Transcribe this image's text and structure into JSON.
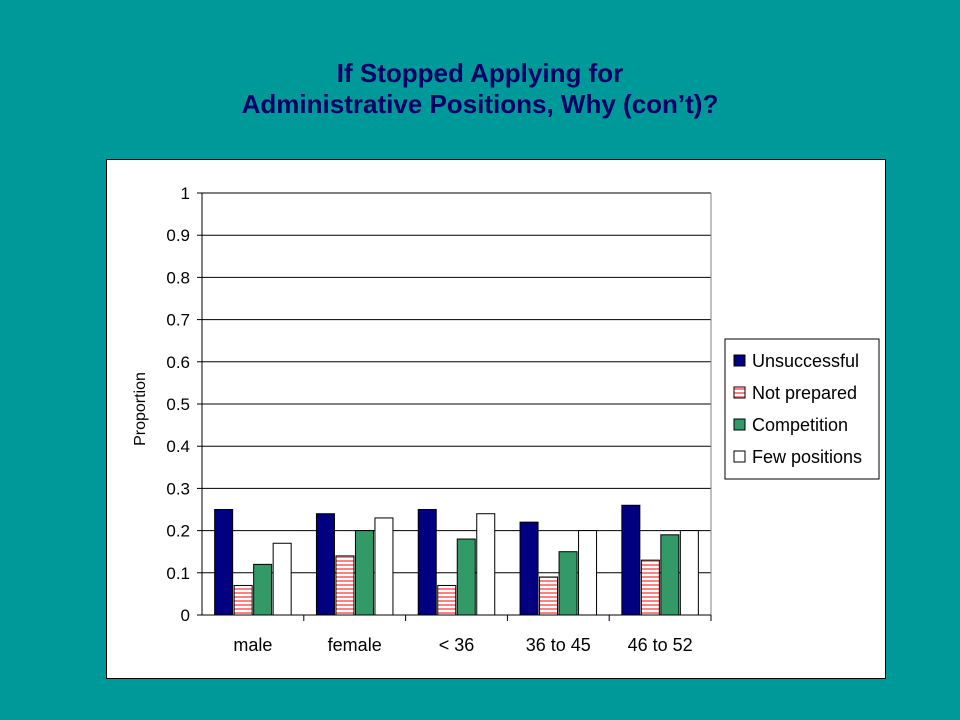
{
  "slide": {
    "title_line1": "If Stopped Applying for",
    "title_line2": "Administrative Positions, Why (con’t)?"
  },
  "chart_data": {
    "type": "bar",
    "categories": [
      "male",
      "female",
      "< 36",
      "36 to 45",
      "46 to 52"
    ],
    "series": [
      {
        "name": "Unsuccessful",
        "color": "#000080",
        "pattern": "solid",
        "values": [
          0.25,
          0.24,
          0.25,
          0.22,
          0.26
        ]
      },
      {
        "name": "Not prepared",
        "color": "#ff8080",
        "pattern": "horizontal-stripes",
        "values": [
          0.07,
          0.14,
          0.07,
          0.09,
          0.13
        ]
      },
      {
        "name": "Competition",
        "color": "#339966",
        "pattern": "solid",
        "values": [
          0.12,
          0.2,
          0.18,
          0.15,
          0.19
        ]
      },
      {
        "name": "Few positions",
        "color": "#ffffff",
        "pattern": "solid",
        "values": [
          0.17,
          0.23,
          0.24,
          0.2,
          0.2
        ]
      }
    ],
    "ylabel": "Proportion",
    "xlabel": "",
    "ylim": [
      0,
      1
    ],
    "yticks": [
      "0",
      "0.1",
      "0.2",
      "0.3",
      "0.4",
      "0.5",
      "0.6",
      "0.7",
      "0.8",
      "0.9",
      "1"
    ],
    "grid": true,
    "legend_position": "right"
  }
}
